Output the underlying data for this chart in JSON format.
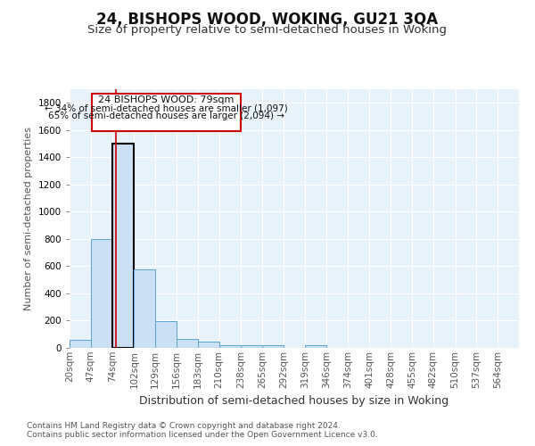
{
  "title": "24, BISHOPS WOOD, WOKING, GU21 3QA",
  "subtitle": "Size of property relative to semi-detached houses in Woking",
  "xlabel": "Distribution of semi-detached houses by size in Woking",
  "ylabel": "Number of semi-detached properties",
  "footnote1": "Contains HM Land Registry data © Crown copyright and database right 2024.",
  "footnote2": "Contains public sector information licensed under the Open Government Licence v3.0.",
  "bin_labels": [
    "20sqm",
    "47sqm",
    "74sqm",
    "102sqm",
    "129sqm",
    "156sqm",
    "183sqm",
    "210sqm",
    "238sqm",
    "265sqm",
    "292sqm",
    "319sqm",
    "346sqm",
    "374sqm",
    "401sqm",
    "428sqm",
    "455sqm",
    "482sqm",
    "510sqm",
    "537sqm",
    "564sqm"
  ],
  "bin_edges": [
    20,
    47,
    74,
    102,
    129,
    156,
    183,
    210,
    238,
    265,
    292,
    319,
    346,
    374,
    401,
    428,
    455,
    482,
    510,
    537,
    564
  ],
  "bar_heights": [
    60,
    800,
    1500,
    575,
    195,
    65,
    45,
    20,
    20,
    20,
    0,
    20,
    0,
    0,
    0,
    0,
    0,
    0,
    0,
    0
  ],
  "bar_color": "#cce0f5",
  "bar_edge_color": "#5ba3d9",
  "highlight_bar_index": 2,
  "highlight_bar_edge_color": "#000000",
  "property_sqm": 79,
  "annotation_line1": "24 BISHOPS WOOD: 79sqm",
  "annotation_line2": "← 34% of semi-detached houses are smaller (1,097)",
  "annotation_line3": "65% of semi-detached houses are larger (2,094) →",
  "annotation_box_color": "#ffffff",
  "annotation_box_edge_color": "#cc0000",
  "ylim": [
    0,
    1900
  ],
  "background_color": "#e8f2fb",
  "grid_color": "#ffffff",
  "title_fontsize": 12,
  "subtitle_fontsize": 9.5,
  "ylabel_fontsize": 8,
  "xlabel_fontsize": 9,
  "tick_fontsize": 7.5,
  "annotation_fontsize": 8,
  "footnote_fontsize": 6.5
}
